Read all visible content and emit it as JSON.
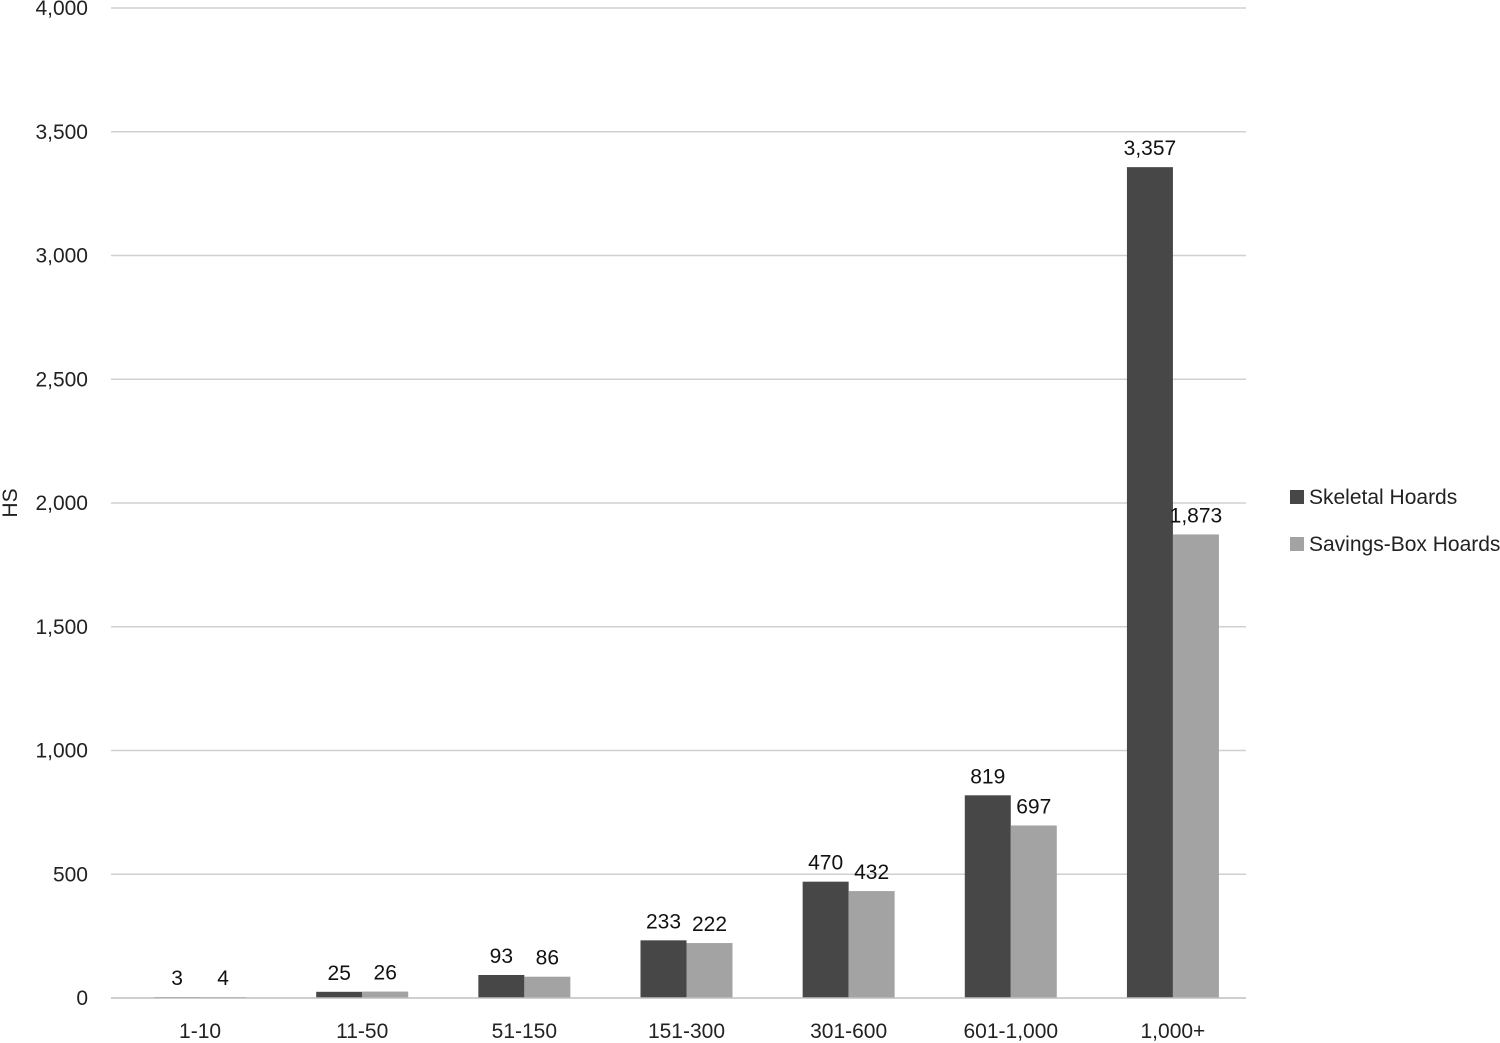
{
  "chart_data": {
    "type": "bar",
    "title": "",
    "xlabel": "",
    "ylabel": "HS",
    "ylim": [
      0,
      4000
    ],
    "yticks": [
      0,
      500,
      1000,
      1500,
      2000,
      2500,
      3000,
      3500,
      4000
    ],
    "ytick_labels": [
      "0",
      "500",
      "1,000",
      "1,500",
      "2,000",
      "2,500",
      "3,000",
      "3,500",
      "4,000"
    ],
    "grid": true,
    "legend_position": "right",
    "categories": [
      "1-10",
      "11-50",
      "51-150",
      "151-300",
      "301-600",
      "601-1,000",
      "1,000+"
    ],
    "series": [
      {
        "name": "Skeletal Hoards",
        "color": "#474747",
        "values": [
          3,
          25,
          93,
          233,
          470,
          819,
          3357
        ],
        "labels": [
          "3",
          "25",
          "93",
          "233",
          "470",
          "819",
          "3,357"
        ]
      },
      {
        "name": "Savings-Box Hoards",
        "color": "#a3a3a3",
        "values": [
          4,
          26,
          86,
          222,
          432,
          697,
          1873
        ],
        "labels": [
          "4",
          "26",
          "86",
          "222",
          "432",
          "697",
          "1,873"
        ]
      }
    ],
    "colors": {
      "gridline": "#d0d0d0",
      "axis": "#bfbfbf"
    }
  }
}
